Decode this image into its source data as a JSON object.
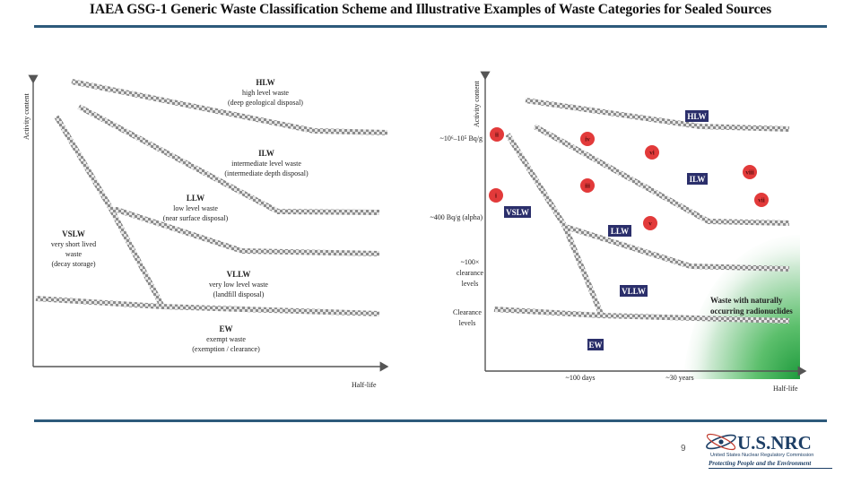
{
  "slide": {
    "title": "IAEA GSG-1 Generic Waste Classification Scheme and Illustrative Examples of Waste Categories for Sealed Sources",
    "page_number": "9"
  },
  "colors": {
    "rule": "#2d5a7b",
    "category_box": "#2b2f6b",
    "source_circle": "#e23a3a",
    "norm_gradient": "#1d9a3c"
  },
  "left_diagram": {
    "y_axis": "Activity content",
    "x_axis": "Half-life",
    "categories": {
      "hlw": [
        "HLW",
        "high level waste",
        "(deep geological disposal)"
      ],
      "ilw": [
        "ILW",
        "intermediate level waste",
        "(intermediate depth disposal)"
      ],
      "llw": [
        "LLW",
        "low level waste",
        "(near surface disposal)"
      ],
      "vslw": [
        "VSLW",
        "very short lived",
        "waste",
        "(decay storage)"
      ],
      "vllw": [
        "VLLW",
        "very low level waste",
        "(landfill disposal)"
      ],
      "ew": [
        "EW",
        "exempt waste",
        "(exemption / clearance)"
      ]
    }
  },
  "right_diagram": {
    "y_axis": "Activity content",
    "x_axis": "Half-life",
    "y_ticks": {
      "t1": "~10⁶–10⁵ Bq/g",
      "t2": "~400 Bq/g (alpha)",
      "t3": [
        "~100×",
        "clearance",
        "levels"
      ],
      "t4": [
        "Clearance",
        "levels"
      ]
    },
    "x_ticks": {
      "t1": "~100 days",
      "t2": "~30 years"
    },
    "boxes": {
      "hlw": "HLW",
      "ilw": "ILW",
      "llw": "LLW",
      "vslw": "VSLW",
      "vllw": "VLLW",
      "ew": "EW"
    },
    "sources": {
      "i": "i",
      "ii": "ii",
      "iii": "iii",
      "iv": "iv",
      "v": "v",
      "vi": "vi",
      "vii": "vii",
      "viii": "viii"
    },
    "norm_label": [
      "Waste with naturally",
      "occurring radionuclides"
    ]
  },
  "nrc_logo": {
    "name": "U.S.NRC",
    "subtitle": "United States Nuclear Regulatory Commission",
    "tagline": "Protecting People and the Environment"
  }
}
